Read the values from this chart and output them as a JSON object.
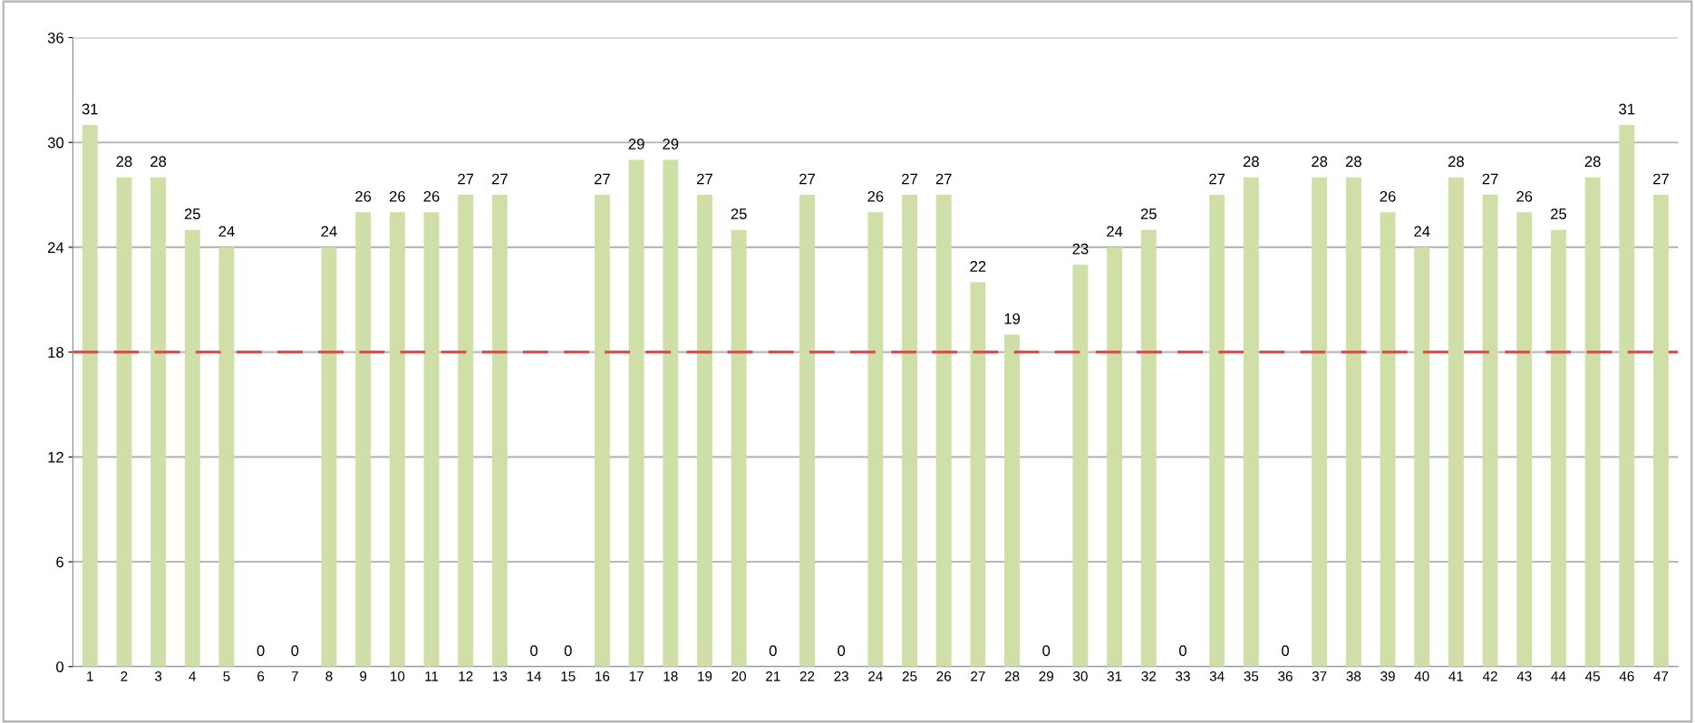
{
  "chart_data": {
    "type": "bar",
    "categories": [
      "1",
      "2",
      "3",
      "4",
      "5",
      "6",
      "7",
      "8",
      "9",
      "10",
      "11",
      "12",
      "13",
      "14",
      "15",
      "16",
      "17",
      "18",
      "19",
      "20",
      "21",
      "22",
      "23",
      "24",
      "25",
      "26",
      "27",
      "28",
      "29",
      "30",
      "31",
      "32",
      "33",
      "34",
      "35",
      "36",
      "37",
      "38",
      "39",
      "40",
      "41",
      "42",
      "43",
      "44",
      "45",
      "46",
      "47"
    ],
    "values": [
      31,
      28,
      28,
      25,
      24,
      0,
      0,
      24,
      26,
      26,
      26,
      27,
      27,
      0,
      0,
      27,
      29,
      29,
      27,
      25,
      0,
      27,
      0,
      26,
      27,
      27,
      22,
      19,
      0,
      23,
      24,
      25,
      0,
      27,
      28,
      0,
      28,
      28,
      26,
      24,
      28,
      27,
      26,
      25,
      28,
      31,
      27
    ],
    "color": "#d0dfa8",
    "ylim": [
      0,
      36
    ],
    "yticks": [
      0,
      6,
      12,
      18,
      24,
      30,
      36
    ],
    "grid": "y",
    "data_labels": true,
    "ref_lines": [
      {
        "axis": "y",
        "value": 18,
        "label": null,
        "color": "#d9504f",
        "line_style": "dashed"
      }
    ]
  }
}
